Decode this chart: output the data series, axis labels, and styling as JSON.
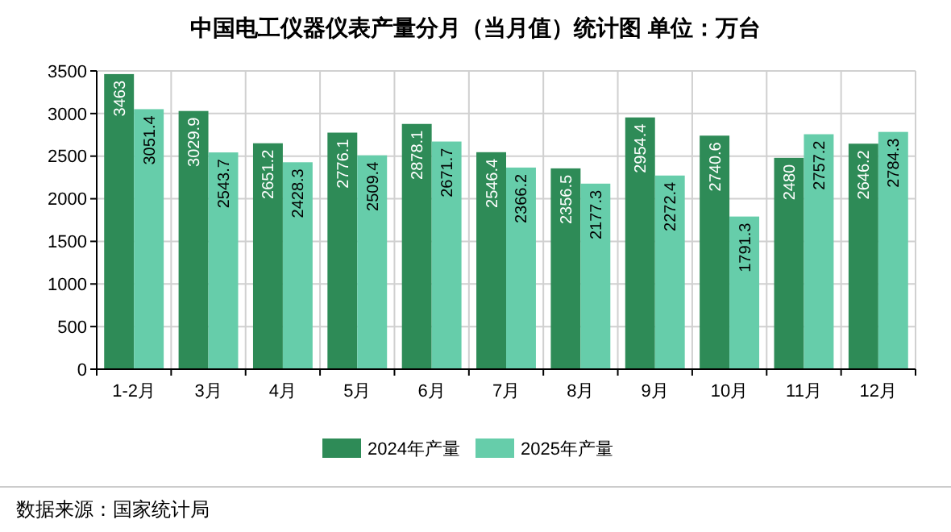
{
  "chart_data": {
    "type": "bar",
    "title": "中国电工仪器仪表产量分月（当月值）统计图 单位：万台",
    "categories": [
      "1-2月",
      "3月",
      "4月",
      "5月",
      "6月",
      "7月",
      "8月",
      "9月",
      "10月",
      "11月",
      "12月"
    ],
    "series": [
      {
        "name": "2024年产量",
        "color": "#2e8b57",
        "values": [
          3463,
          3029.9,
          2651.2,
          2776.1,
          2878.1,
          2546.4,
          2356.5,
          2954.4,
          2740.6,
          2480,
          2646.2
        ]
      },
      {
        "name": "2025年产量",
        "color": "#66cdaa",
        "values": [
          3051.4,
          2543.7,
          2428.3,
          2509.4,
          2671.7,
          2366.2,
          2177.3,
          2272.4,
          1791.3,
          2757.2,
          2784.3
        ]
      }
    ],
    "ylim": [
      0,
      3500
    ],
    "yticks": [
      0,
      500,
      1000,
      1500,
      2000,
      2500,
      3000,
      3500
    ],
    "grid": true,
    "legend": "bottom",
    "data_labels": true,
    "annotations": [
      "数据来源：国家统计局"
    ]
  }
}
